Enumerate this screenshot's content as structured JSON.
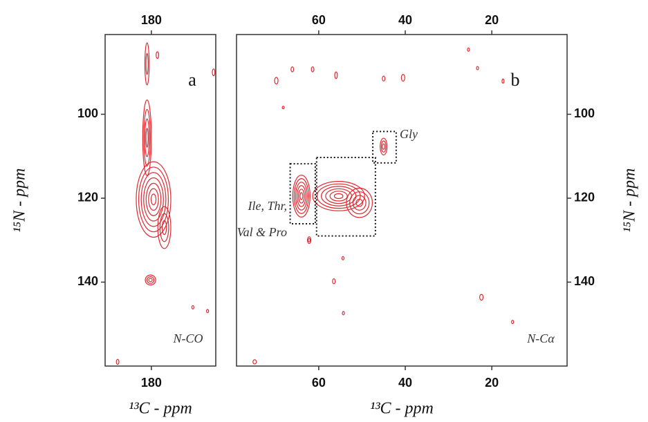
{
  "chart_data": [
    {
      "type": "contour",
      "panel": "a",
      "annotation": "N-CO",
      "xlabel": "¹³C - ppm",
      "ylabel": "¹⁵N - ppm",
      "xlim": [
        190.7,
        165.1
      ],
      "ylim": [
        81,
        160
      ],
      "xticks": [
        180
      ],
      "yticks": [
        100,
        120,
        140
      ],
      "yaxis_side": "left",
      "color": "#e02830",
      "peaks": {
        "x": [
          181,
          179.5,
          177,
          181,
          180.2,
          178.6,
          165.6,
          170.4,
          167,
          187.8
        ],
        "y": [
          105.6,
          120.3,
          127,
          88,
          139.5,
          85.9,
          90,
          146,
          146.9,
          159
        ],
        "x_width": [
          1,
          4,
          1.5,
          0.5,
          1.2,
          0.3,
          0.3,
          0.2,
          0.2,
          0.3
        ],
        "y_width": [
          9,
          9,
          5,
          5,
          1.2,
          0.8,
          0.8,
          0.4,
          0.4,
          0.6
        ],
        "levels": [
          4,
          7,
          3,
          2,
          3,
          1,
          1,
          1,
          1,
          1
        ]
      }
    },
    {
      "type": "contour",
      "panel": "b",
      "annotation": "N-Cα",
      "xlabel": "¹³C - ppm",
      "ylabel": "¹⁵N - ppm",
      "xlim": [
        79,
        2.6
      ],
      "ylim": [
        81,
        160
      ],
      "xticks": [
        60,
        40,
        20
      ],
      "yticks": [
        100,
        120,
        140
      ],
      "yaxis_side": "right",
      "color": "#e02830",
      "peaks": {
        "x": [
          64,
          55.4,
          50.6,
          45,
          69.8,
          66.1,
          61.4,
          56,
          45,
          40.5,
          25.4,
          23.3,
          17.4,
          68.2,
          54.4,
          56.5,
          54.3,
          22.4,
          15.2,
          74.8,
          62.2
        ],
        "y": [
          119.5,
          119.5,
          121.1,
          107.7,
          92,
          89.3,
          89.3,
          90.7,
          91.5,
          91.3,
          84.6,
          89,
          92.1,
          98.4,
          134.3,
          139.8,
          147.4,
          143.6,
          149.5,
          159,
          130
        ],
        "x_width": [
          2,
          6,
          3,
          0.8,
          0.4,
          0.3,
          0.3,
          0.3,
          0.3,
          0.4,
          0.2,
          0.2,
          0.2,
          0.2,
          0.2,
          0.3,
          0.2,
          0.4,
          0.2,
          0.4,
          0.4
        ],
        "y_width": [
          5,
          3.5,
          3.5,
          2,
          0.8,
          0.6,
          0.6,
          0.8,
          0.6,
          0.8,
          0.4,
          0.4,
          0.5,
          0.3,
          0.4,
          0.6,
          0.4,
          0.7,
          0.4,
          0.5,
          0.8
        ],
        "levels": [
          6,
          6,
          4,
          3,
          1,
          1,
          1,
          1,
          1,
          1,
          1,
          1,
          1,
          1,
          1,
          1,
          1,
          1,
          1,
          1,
          2
        ]
      },
      "regions": [
        {
          "x": [
            47.5,
            42.1
          ],
          "y": [
            104.1,
            111.6
          ]
        },
        {
          "x": [
            66.6,
            60.8
          ],
          "y": [
            111.8,
            126.1
          ]
        },
        {
          "x": [
            60.5,
            46.9
          ],
          "y": [
            110.3,
            129
          ]
        }
      ],
      "region_labels": [
        "Gly",
        "Ile, Thr,",
        "Val & Pro"
      ]
    }
  ]
}
